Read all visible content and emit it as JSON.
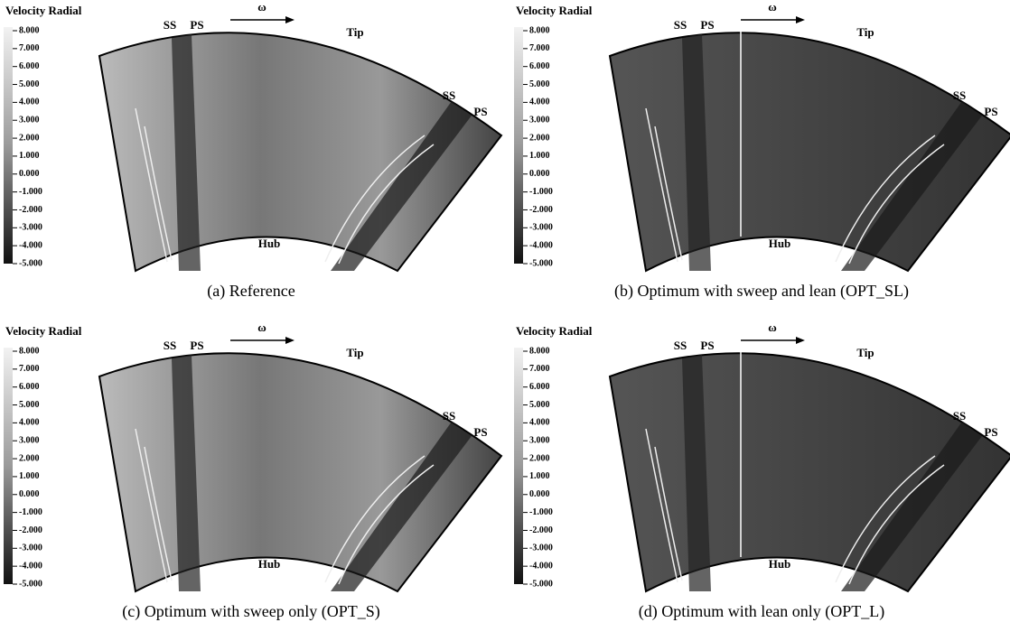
{
  "panels": [
    {
      "legend_title": "Velocity Radial",
      "legend_ticks": [
        "8.000",
        "7.000",
        "6.000",
        "5.000",
        "4.000",
        "3.000",
        "2.000",
        "1.000",
        "0.000",
        "-1.000",
        "-2.000",
        "-3.000",
        "-4.000",
        "-5.000"
      ],
      "labels": [
        "SS",
        "PS",
        "ω",
        "Tip",
        "SS",
        "PS",
        "Hub"
      ],
      "caption": "(a) Reference"
    },
    {
      "legend_title": "Velocity Radial",
      "legend_ticks": [
        "8.000",
        "7.000",
        "6.000",
        "5.000",
        "4.000",
        "3.000",
        "2.000",
        "1.000",
        "0.000",
        "-1.000",
        "-2.000",
        "-3.000",
        "-4.000",
        "-5.000"
      ],
      "labels": [
        "SS",
        "PS",
        "ω",
        "Tip",
        "SS",
        "PS",
        "Hub"
      ],
      "caption": "(b) Optimum with sweep and lean (OPT_SL)"
    },
    {
      "legend_title": "Velocity Radial",
      "legend_ticks": [
        "8.000",
        "7.000",
        "6.000",
        "5.000",
        "4.000",
        "3.000",
        "2.000",
        "1.000",
        "0.000",
        "-1.000",
        "-2.000",
        "-3.000",
        "-4.000",
        "-5.000"
      ],
      "labels": [
        "SS",
        "PS",
        "ω",
        "Tip",
        "SS",
        "PS",
        "Hub"
      ],
      "caption": "(c) Optimum with sweep only (OPT_S)"
    },
    {
      "legend_title": "Velocity Radial",
      "legend_ticks": [
        "8.000",
        "7.000",
        "6.000",
        "5.000",
        "4.000",
        "3.000",
        "2.000",
        "1.000",
        "0.000",
        "-1.000",
        "-2.000",
        "-3.000",
        "-4.000",
        "-5.000"
      ],
      "labels": [
        "SS",
        "PS",
        "ω",
        "Tip",
        "SS",
        "PS",
        "Hub"
      ],
      "caption": "(d) Optimum with lean only (OPT_L)"
    }
  ]
}
